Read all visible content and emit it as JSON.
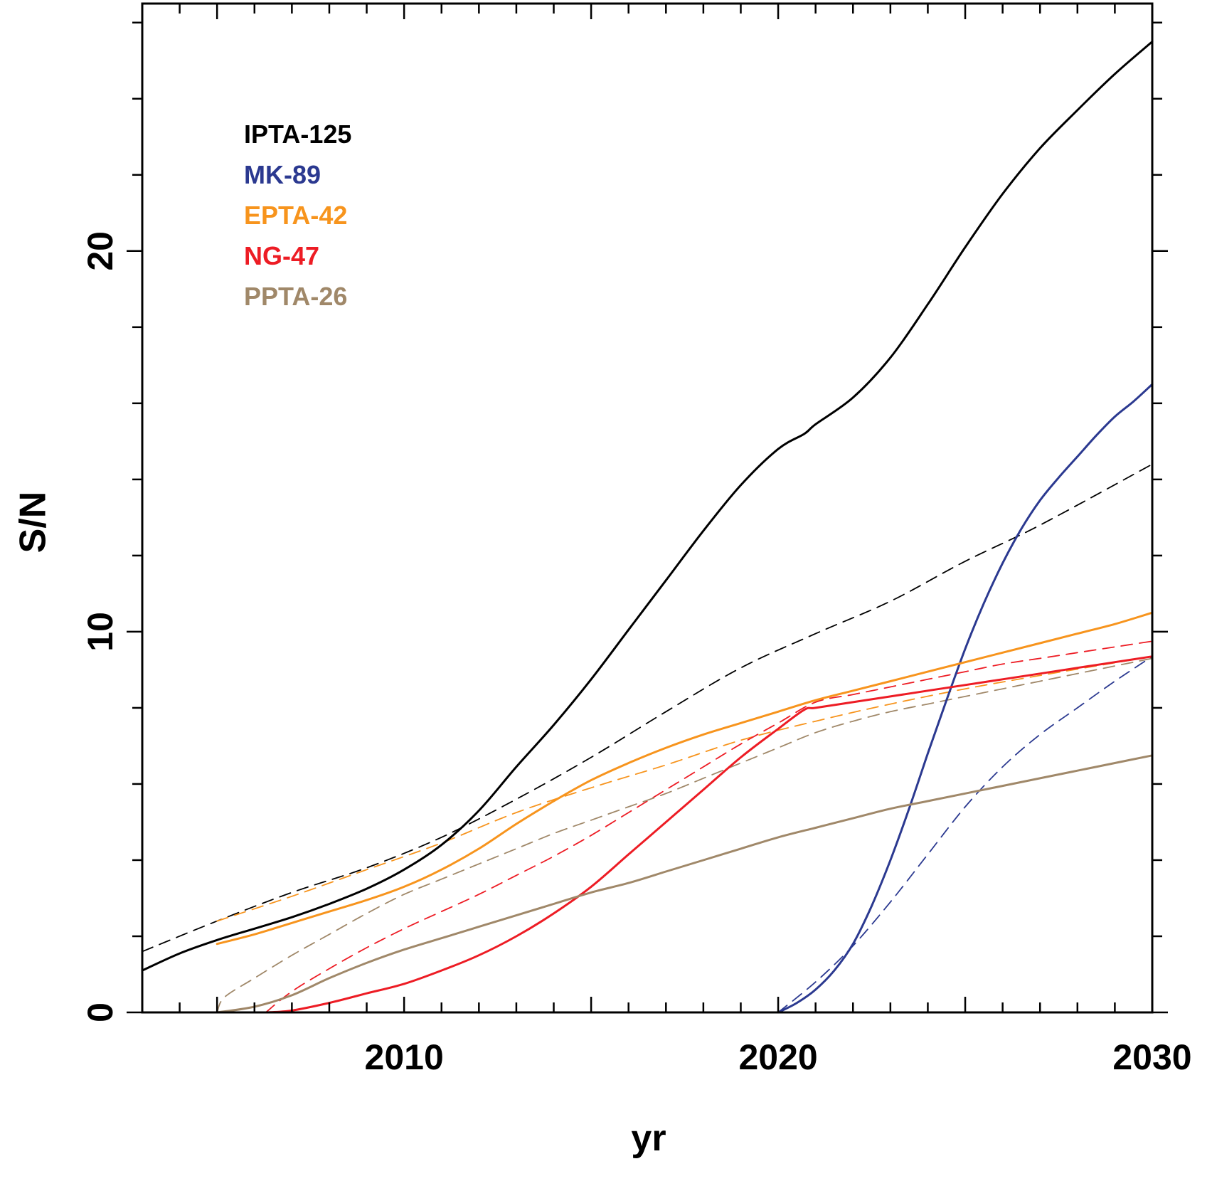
{
  "chart_data": {
    "type": "line",
    "title": "",
    "xlabel": "yr",
    "ylabel": "S/N",
    "xlim": [
      2003,
      2030
    ],
    "ylim": [
      0,
      26.5
    ],
    "x_ticks": [
      2010,
      2020,
      2030
    ],
    "y_ticks": [
      0,
      10,
      20
    ],
    "grid": false,
    "legend_position": "top-left",
    "series": [
      {
        "name": "IPTA-125",
        "color": "#000000",
        "style": "solid",
        "x": [
          2003,
          2004,
          2005,
          2006,
          2007,
          2008,
          2009,
          2010,
          2011,
          2012,
          2013,
          2014,
          2015,
          2016,
          2017,
          2018,
          2019,
          2020,
          2020.7,
          2021,
          2022,
          2023,
          2024,
          2025,
          2026,
          2027,
          2028,
          2029,
          2030
        ],
        "values": [
          1.1,
          1.55,
          1.9,
          2.2,
          2.5,
          2.85,
          3.25,
          3.75,
          4.4,
          5.3,
          6.45,
          7.55,
          8.75,
          10.05,
          11.35,
          12.65,
          13.85,
          14.8,
          15.2,
          15.45,
          16.15,
          17.2,
          18.6,
          20.1,
          21.5,
          22.7,
          23.7,
          24.65,
          25.5
        ]
      },
      {
        "name": "IPTA-125",
        "color": "#000000",
        "style": "dashed",
        "x": [
          2003,
          2005,
          2007,
          2009,
          2011,
          2013,
          2015,
          2017,
          2019,
          2021,
          2023,
          2025,
          2027,
          2030
        ],
        "values": [
          1.6,
          2.4,
          3.15,
          3.8,
          4.6,
          5.6,
          6.7,
          7.9,
          9.05,
          9.95,
          10.8,
          11.85,
          12.8,
          14.4
        ]
      },
      {
        "name": "MK-89",
        "color": "#2b3990",
        "style": "solid",
        "x": [
          2020,
          2020.5,
          2021,
          2021.5,
          2022,
          2022.5,
          2023,
          2023.5,
          2024,
          2024.5,
          2025,
          2025.5,
          2026,
          2026.5,
          2027,
          2027.5,
          2028,
          2028.5,
          2029,
          2029.5,
          2030
        ],
        "values": [
          0,
          0.25,
          0.6,
          1.1,
          1.8,
          2.8,
          4.0,
          5.35,
          6.8,
          8.2,
          9.55,
          10.75,
          11.8,
          12.7,
          13.45,
          14.05,
          14.6,
          15.15,
          15.65,
          16.05,
          16.5
        ]
      },
      {
        "name": "MK-89",
        "color": "#2b3990",
        "style": "dashed",
        "x": [
          2020,
          2021,
          2022,
          2023,
          2024,
          2025,
          2026,
          2027,
          2028,
          2029,
          2030
        ],
        "values": [
          0,
          0.8,
          1.75,
          2.9,
          4.15,
          5.4,
          6.45,
          7.3,
          8.0,
          8.7,
          9.35
        ]
      },
      {
        "name": "EPTA-42",
        "color": "#f7941d",
        "style": "solid",
        "x": [
          2005,
          2006,
          2007,
          2008,
          2009,
          2010,
          2011,
          2012,
          2013,
          2014,
          2015,
          2016,
          2017,
          2018,
          2019,
          2020,
          2021,
          2022,
          2023,
          2024,
          2025,
          2026,
          2027,
          2028,
          2029,
          2030
        ],
        "values": [
          1.8,
          2.05,
          2.35,
          2.65,
          2.95,
          3.3,
          3.75,
          4.3,
          4.95,
          5.55,
          6.1,
          6.55,
          6.95,
          7.3,
          7.6,
          7.9,
          8.2,
          8.45,
          8.7,
          8.95,
          9.2,
          9.45,
          9.7,
          9.95,
          10.2,
          10.5
        ]
      },
      {
        "name": "EPTA-42",
        "color": "#f7941d",
        "style": "dashed",
        "x": [
          2005,
          2007,
          2009,
          2011,
          2013,
          2015,
          2017,
          2019,
          2021,
          2023,
          2025,
          2027,
          2030
        ],
        "values": [
          2.4,
          3.05,
          3.75,
          4.45,
          5.25,
          5.9,
          6.5,
          7.15,
          7.65,
          8.1,
          8.5,
          8.85,
          9.35
        ]
      },
      {
        "name": "NG-47",
        "color": "#ed1c24",
        "style": "solid",
        "x": [
          2006.3,
          2007,
          2008,
          2009,
          2010,
          2011,
          2012,
          2013,
          2014,
          2015,
          2016,
          2017,
          2018,
          2019,
          2020,
          2020.7,
          2021,
          2022,
          2023,
          2024,
          2025,
          2026,
          2027,
          2028,
          2029,
          2030
        ],
        "values": [
          0,
          0.05,
          0.25,
          0.5,
          0.75,
          1.1,
          1.5,
          2.0,
          2.6,
          3.3,
          4.15,
          5.0,
          5.85,
          6.7,
          7.45,
          7.95,
          8.0,
          8.15,
          8.3,
          8.45,
          8.6,
          8.75,
          8.9,
          9.05,
          9.2,
          9.35
        ]
      },
      {
        "name": "NG-47",
        "color": "#ed1c24",
        "style": "dashed",
        "x": [
          2006.3,
          2007,
          2008,
          2009,
          2010,
          2011,
          2012,
          2013,
          2014,
          2015,
          2016,
          2017,
          2018,
          2019,
          2020,
          2021,
          2022,
          2023,
          2024,
          2025,
          2026,
          2027,
          2028,
          2029,
          2030
        ],
        "values": [
          0,
          0.55,
          1.15,
          1.7,
          2.2,
          2.65,
          3.1,
          3.6,
          4.1,
          4.65,
          5.25,
          5.85,
          6.45,
          7.05,
          7.6,
          8.15,
          8.35,
          8.55,
          8.75,
          8.95,
          9.15,
          9.3,
          9.45,
          9.6,
          9.75
        ]
      },
      {
        "name": "PPTA-26",
        "color": "#a08869",
        "style": "solid",
        "x": [
          2005,
          2006,
          2007,
          2008,
          2009,
          2010,
          2011,
          2012,
          2013,
          2014,
          2015,
          2016,
          2017,
          2018,
          2019,
          2020,
          2021,
          2022,
          2023,
          2024,
          2025,
          2026,
          2027,
          2028,
          2029,
          2030
        ],
        "values": [
          0,
          0.15,
          0.45,
          0.9,
          1.3,
          1.65,
          1.95,
          2.25,
          2.55,
          2.85,
          3.15,
          3.4,
          3.7,
          4.0,
          4.3,
          4.6,
          4.85,
          5.1,
          5.35,
          5.55,
          5.75,
          5.95,
          6.15,
          6.35,
          6.55,
          6.75
        ]
      },
      {
        "name": "PPTA-26",
        "color": "#a08869",
        "style": "dashed",
        "x": [
          2005,
          2005.2,
          2006,
          2007,
          2008,
          2009,
          2010,
          2011,
          2012,
          2013,
          2014,
          2015,
          2016,
          2017,
          2018,
          2019,
          2020,
          2021,
          2022,
          2023,
          2024,
          2025,
          2026,
          2027,
          2028,
          2029,
          2030
        ],
        "values": [
          0,
          0.4,
          0.9,
          1.5,
          2.05,
          2.6,
          3.1,
          3.5,
          3.9,
          4.3,
          4.7,
          5.05,
          5.4,
          5.75,
          6.15,
          6.55,
          6.95,
          7.35,
          7.65,
          7.9,
          8.1,
          8.3,
          8.5,
          8.7,
          8.9,
          9.1,
          9.3
        ]
      }
    ],
    "legend": [
      {
        "label": "IPTA-125",
        "color": "#000000"
      },
      {
        "label": "MK-89",
        "color": "#2b3990"
      },
      {
        "label": "EPTA-42",
        "color": "#f7941d"
      },
      {
        "label": "NG-47",
        "color": "#ed1c24"
      },
      {
        "label": "PPTA-26",
        "color": "#a08869"
      }
    ]
  }
}
